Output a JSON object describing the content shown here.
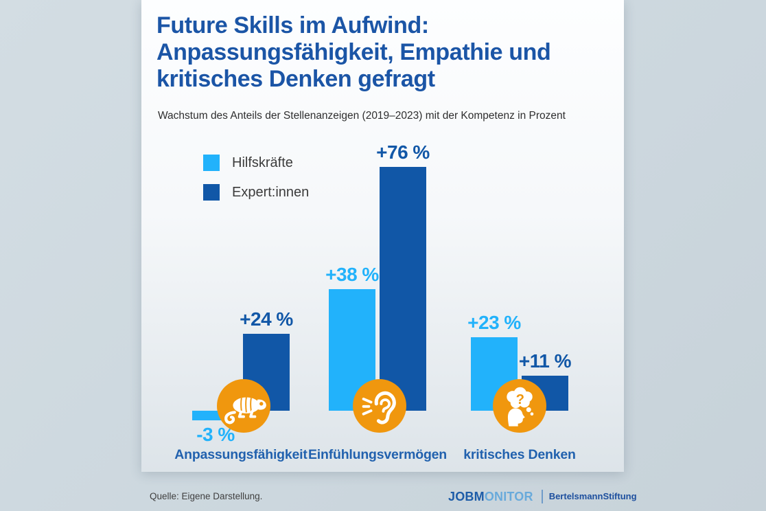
{
  "header": {
    "title_lines": [
      "Future Skills im Aufwind:",
      "Anpassungsfähigkeit, Empathie und",
      "kritisches Denken gefragt"
    ],
    "subtitle": "Wachstum des Anteils der Stellenanzeigen (2019–2023) mit der Kompetenz in Prozent"
  },
  "legend": {
    "items": [
      {
        "label": "Hilfskräfte",
        "color": "#22b2fb"
      },
      {
        "label": "Expert:innen",
        "color": "#1157a7"
      }
    ]
  },
  "chart_data": {
    "type": "bar",
    "title": "Future Skills im Aufwind: Anpassungsfähigkeit, Empathie und kritisches Denken gefragt",
    "subtitle": "Wachstum des Anteils der Stellenanzeigen (2019–2023) mit der Kompetenz in Prozent",
    "unit": "Prozent",
    "categories": [
      "Anpassungsfähigkeit",
      "Einfühlungsvermögen",
      "kritisches Denken"
    ],
    "series": [
      {
        "name": "Hilfskräfte",
        "color": "#22b2fb",
        "values": [
          -3,
          38,
          23
        ],
        "labels": [
          "-3 %",
          "+38 %",
          "+23 %"
        ]
      },
      {
        "name": "Expert:innen",
        "color": "#1157a7",
        "values": [
          24,
          76,
          11
        ],
        "labels": [
          "+24 %",
          "+76 %",
          "+11 %"
        ]
      }
    ],
    "category_icons": [
      "chameleon-icon",
      "ear-listening-icon",
      "thinking-head-icon"
    ],
    "ylim": [
      -5,
      80
    ],
    "grid": false,
    "legend_position": "top-left"
  },
  "footer": {
    "source": "Quelle: Eigene Darstellung.",
    "jobmonitor_logo": {
      "dark_part": "JOBM",
      "light_part": "ONITOR"
    },
    "bertelsmann_logo": {
      "regular_part": "Bertelsmann",
      "bold_part": "Stiftung"
    }
  },
  "colors": {
    "accent_light_blue": "#22b2fb",
    "accent_dark_blue": "#1157a7",
    "title_blue": "#1b55a6",
    "category_label_blue": "#2161ae",
    "icon_orange": "#f0970e",
    "page_background": "#ccd7de",
    "card_background": "#fdfeff"
  }
}
